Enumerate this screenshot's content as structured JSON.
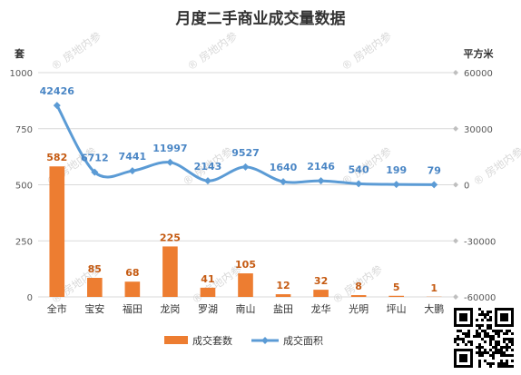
{
  "chart_data": {
    "type": "bar",
    "title": "月度二手商业成交量数据",
    "left_axis_unit": "套",
    "right_axis_unit": "平方米",
    "categories": [
      "全市",
      "宝安",
      "福田",
      "龙岗",
      "罗湖",
      "南山",
      "盐田",
      "龙华",
      "光明",
      "坪山",
      "大鹏"
    ],
    "series": [
      {
        "name": "成交套数",
        "type": "bar",
        "axis": "left",
        "color": "#ed7d31",
        "values": [
          582,
          85,
          68,
          225,
          41,
          105,
          12,
          32,
          8,
          5,
          1
        ]
      },
      {
        "name": "成交面积",
        "type": "line",
        "axis": "right",
        "color": "#5b9bd5",
        "values": [
          42426,
          6712,
          7441,
          11997,
          2143,
          9527,
          1640,
          2146,
          540,
          199,
          79
        ]
      }
    ],
    "left_ylim": [
      0,
      1000
    ],
    "left_ticks": [
      0,
      250,
      500,
      750,
      1000
    ],
    "right_ylim": [
      -60000,
      60000
    ],
    "right_ticks": [
      -60000,
      -30000,
      0,
      30000,
      60000
    ],
    "grid": true,
    "legend_position": "bottom"
  },
  "watermark_text": "房地内参"
}
